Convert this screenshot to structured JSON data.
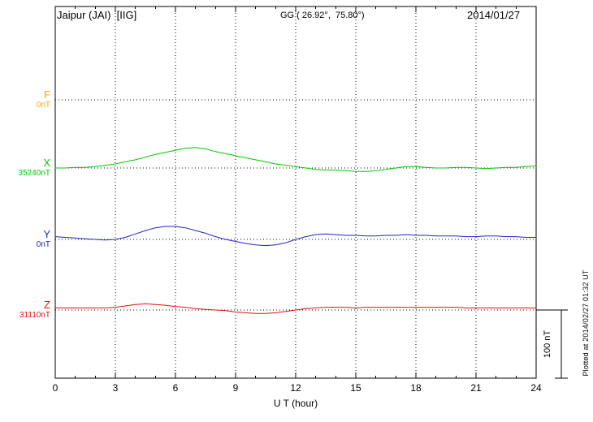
{
  "chart_data": {
    "type": "line",
    "title": "Jaipur (JAI)  [IIG]",
    "subtitle": "GG ( 26.92°,  75.80°)",
    "date": "2014/01/27",
    "xlabel": "U T (hour)",
    "x_range": [
      0,
      24
    ],
    "x_ticks": [
      0,
      3,
      6,
      9,
      12,
      15,
      18,
      21,
      24
    ],
    "grid": "dotted vertical lines every 3 h, dotted horizontal line at each channel baseline",
    "legend_position": "left channel labels",
    "scale_bar": {
      "label": "100 nT",
      "nT": 100
    },
    "annotation_right": "Plotted at 2014/02/27 01:32 UT",
    "unit": "nT, offset from channel baseline",
    "series": [
      {
        "name": "F",
        "baseline_label": "0nT",
        "color": "#ffa500",
        "x_start": 0,
        "x_step": 0.5,
        "values": []
      },
      {
        "name": "X",
        "baseline_label": "35240nT",
        "color": "#00c800",
        "x_start": 0,
        "x_step": 0.5,
        "values": [
          0,
          0,
          1,
          1,
          2,
          4,
          6,
          9,
          12,
          16,
          20,
          23,
          26,
          29,
          30,
          28,
          24,
          21,
          18,
          15,
          12,
          9,
          6,
          4,
          2,
          0,
          -2,
          -3,
          -3,
          -4,
          -5,
          -5,
          -4,
          -2,
          0,
          2,
          2,
          1,
          0,
          0,
          1,
          1,
          0,
          -1,
          0,
          1,
          1,
          2,
          3
        ]
      },
      {
        "name": "Y",
        "baseline_label": "0nT",
        "color": "#2222cc",
        "x_start": 0,
        "x_step": 0.5,
        "values": [
          4,
          3,
          2,
          1,
          0,
          -1,
          0,
          3,
          8,
          13,
          17,
          19,
          19,
          17,
          13,
          9,
          4,
          0,
          -3,
          -6,
          -8,
          -9,
          -8,
          -5,
          0,
          4,
          7,
          8,
          7,
          6,
          6,
          5,
          5,
          6,
          6,
          7,
          6,
          6,
          5,
          5,
          5,
          4,
          4,
          5,
          5,
          4,
          4,
          3,
          3
        ]
      },
      {
        "name": "Z",
        "baseline_label": "31110nT",
        "color": "#dd1111",
        "x_start": 0,
        "x_step": 0.5,
        "values": [
          3,
          3,
          3,
          3,
          3,
          3,
          4,
          6,
          8,
          9,
          8,
          7,
          5,
          4,
          2,
          1,
          0,
          -1,
          -3,
          -4,
          -5,
          -5,
          -4,
          -2,
          0,
          2,
          3,
          4,
          4,
          4,
          3,
          4,
          4,
          4,
          4,
          4,
          4,
          4,
          4,
          4,
          4,
          3,
          3,
          3,
          3,
          3,
          3,
          3,
          3
        ]
      }
    ]
  }
}
